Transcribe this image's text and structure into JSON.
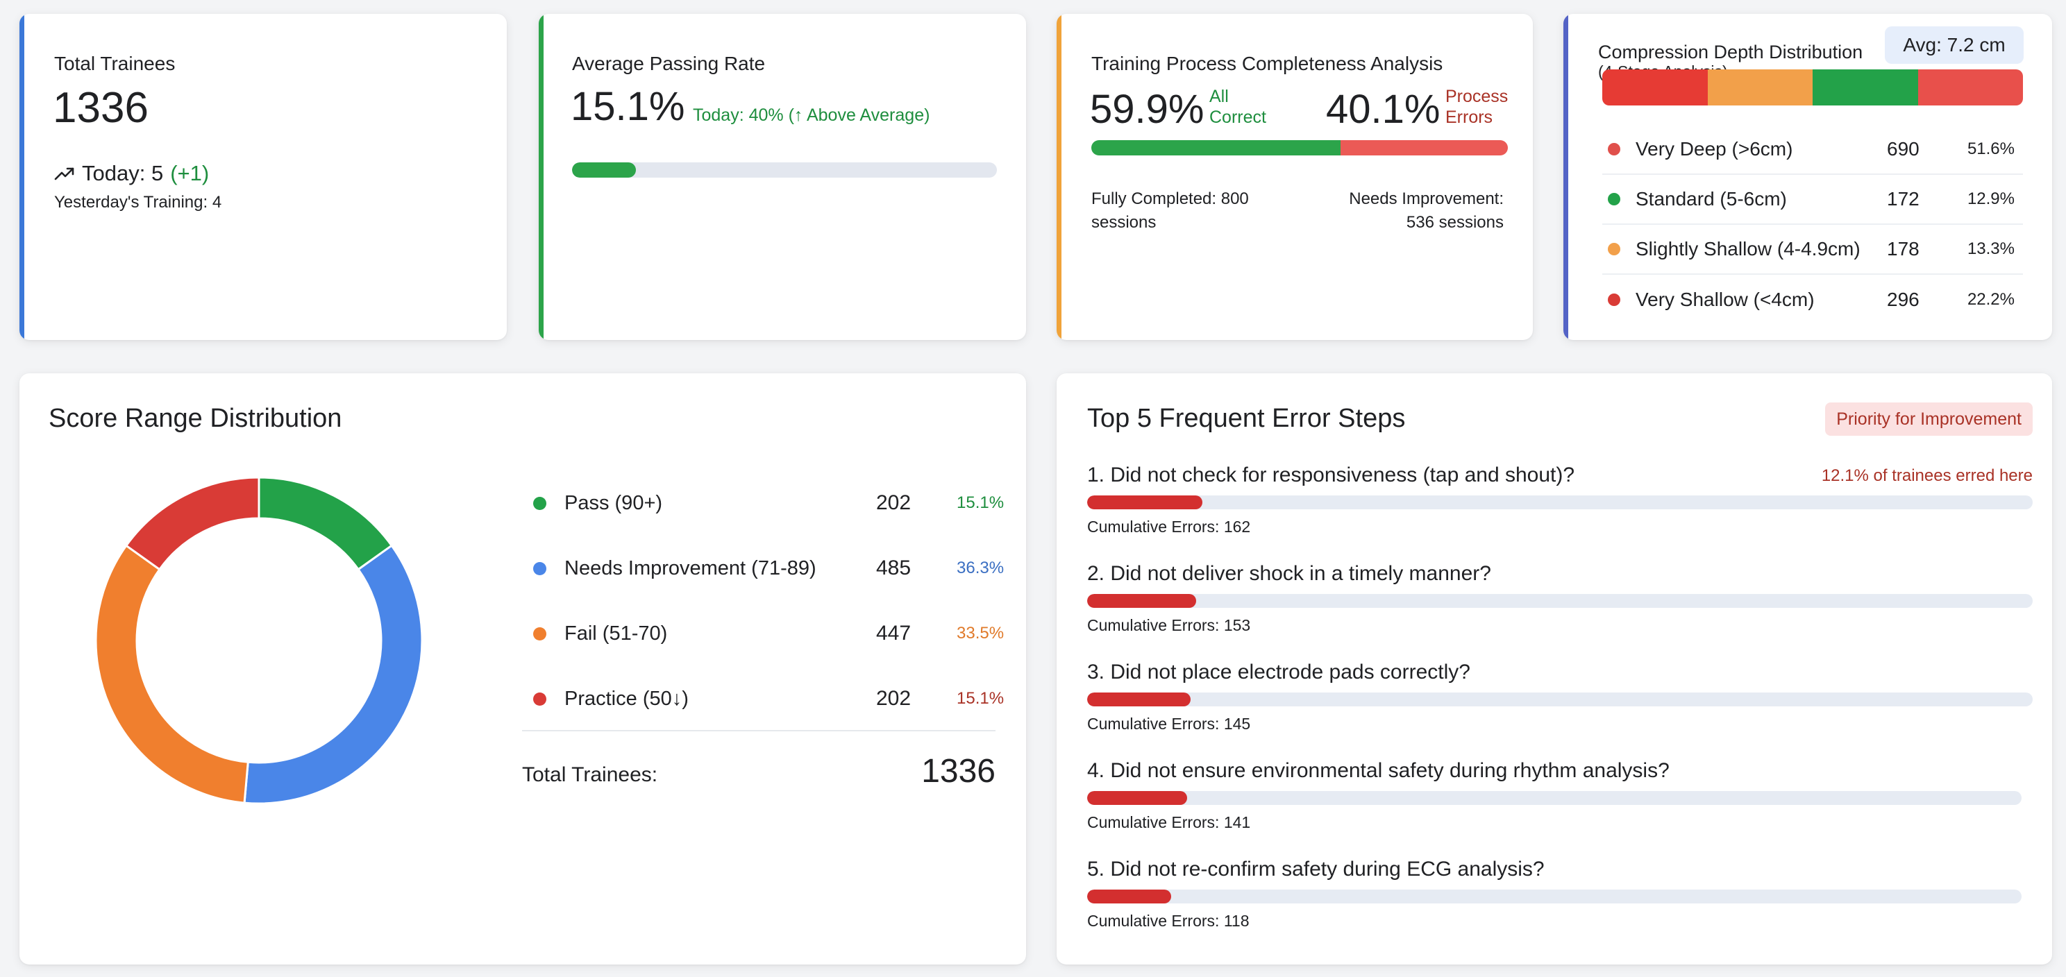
{
  "colors": {
    "blue": "#3b78d8",
    "green": "#2ca44a",
    "orange": "#f0a33a",
    "indigo": "#5463c6",
    "red": "#d93b36"
  },
  "total_trainees_card": {
    "title": "Total Trainees",
    "value": "1336",
    "trend_icon": "trending-up-icon",
    "today_label": "Today: 5",
    "today_delta": "(+1)",
    "yesterday": "Yesterday's Training: 4"
  },
  "passing_rate_card": {
    "title": "Average Passing Rate",
    "value": "15.1%",
    "today_note": "Today: 40% (↑ Above Average)",
    "progress_fraction": 0.151
  },
  "completeness_card": {
    "title": "Training Process Completeness Analysis",
    "correct_pct": "59.9%",
    "correct_label": "All Correct",
    "error_pct": "40.1%",
    "error_label": "Process Errors",
    "correct_fraction": 0.599,
    "fully_completed": "Fully Completed: 800 sessions",
    "needs_improvement": "Needs Improvement: 536 sessions"
  },
  "compression_card": {
    "title": "Compression Depth Distribution",
    "subtitle": "(4-Stage Analysis)",
    "avg": "Avg: 7.2 cm",
    "stack_colors": [
      "#e63b34",
      "#f2a04a",
      "#23a249",
      "#e8504b"
    ],
    "stack_fractions": [
      0.25,
      0.25,
      0.25,
      0.25
    ],
    "rows": [
      {
        "label": "Very Deep (>6cm)",
        "count": "690",
        "pct": "51.6%",
        "color": "#e0504b"
      },
      {
        "label": "Standard (5-6cm)",
        "count": "172",
        "pct": "12.9%",
        "color": "#23a249"
      },
      {
        "label": "Slightly Shallow (4-4.9cm)",
        "count": "178",
        "pct": "13.3%",
        "color": "#f2a04a"
      },
      {
        "label": "Very Shallow (<4cm)",
        "count": "296",
        "pct": "22.2%",
        "color": "#d93b36"
      }
    ]
  },
  "score_card": {
    "title": "Score Range Distribution",
    "total_label": "Total Trainees:",
    "total_value": "1336"
  },
  "chart_data": {
    "type": "pie",
    "categories": [
      "Pass (90+)",
      "Needs Improvement (71-89)",
      "Fail (51-70)",
      "Practice (50↓)"
    ],
    "values": [
      202,
      485,
      447,
      202
    ],
    "percent_labels": [
      "15.1%",
      "36.3%",
      "33.5%",
      "15.1%"
    ],
    "colors": [
      "#23a249",
      "#4a86e8",
      "#f07f2e",
      "#d93b36"
    ],
    "label_colors": [
      "#1e8e3e",
      "#3b6fc2",
      "#e07a2a",
      "#a93226"
    ],
    "title": "Score Range Distribution",
    "donut": true
  },
  "errors_card": {
    "title": "Top 5 Frequent Error Steps",
    "badge": "Priority for Improvement",
    "note": "12.1% of trainees erred here",
    "items": [
      {
        "question": "1. Did not check for responsiveness (tap and shout)?",
        "cumulative": "Cumulative Errors: 162",
        "count": 162
      },
      {
        "question": "2. Did not deliver shock in a timely manner?",
        "cumulative": "Cumulative Errors: 153",
        "count": 153
      },
      {
        "question": "3. Did not place electrode pads correctly?",
        "cumulative": "Cumulative Errors: 145",
        "count": 145
      },
      {
        "question": "4. Did not ensure environmental safety during rhythm analysis?",
        "cumulative": "Cumulative Errors: 141",
        "count": 141
      },
      {
        "question": "5. Did not re-confirm safety during ECG analysis?",
        "cumulative": "Cumulative Errors: 118",
        "count": 118
      }
    ]
  }
}
